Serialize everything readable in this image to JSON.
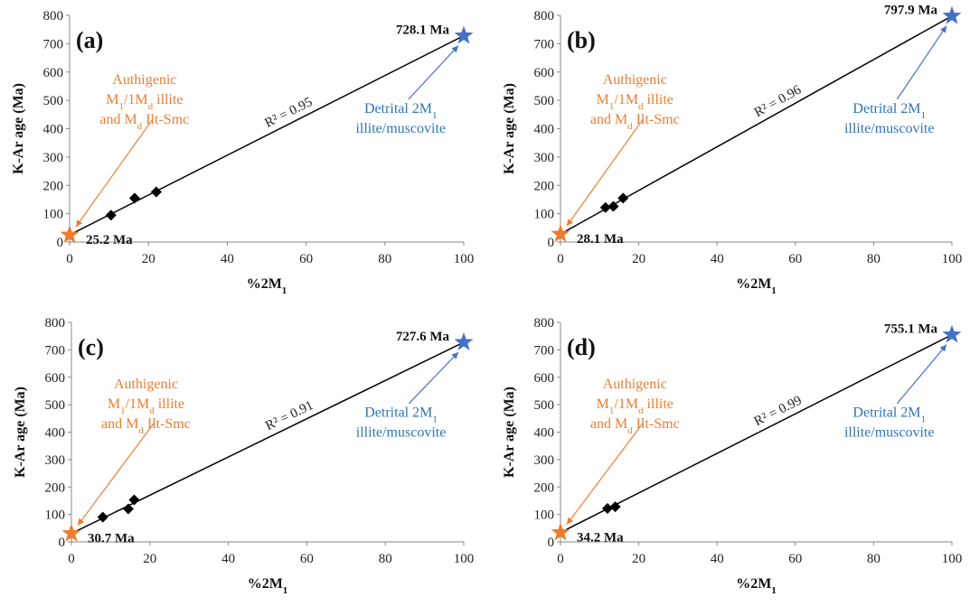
{
  "figure": {
    "authigenic_label": {
      "line1": "Authigenic",
      "line2_prefix": "M",
      "line2_sub1": "1",
      "line2_mid": "/1M",
      "line2_sub2": "d",
      "line2_suffix": " illite",
      "line3_prefix": "and M",
      "line3_sub": "d",
      "line3_suffix": " Ilt-Smc"
    },
    "detrital_label": {
      "line1_prefix": "Detrital 2M",
      "line1_sub": "1",
      "line2": "illite/muscovite"
    },
    "colors": {
      "authigenic": "#ED7D31",
      "detrital": "#4472C4",
      "detrital_text": "#2E75B6",
      "data_marker": "#000000",
      "regression_line": "#000000"
    },
    "marker_icons": {
      "authigenic_end_member": "star-icon",
      "detrital_end_member": "star-icon",
      "sample": "diamond-icon"
    }
  },
  "chart_data": [
    {
      "type": "scatter",
      "panel_label": "(a)",
      "xlabel_prefix": "%2M",
      "xlabel_sub": "1",
      "ylabel": "K-Ar age (Ma)",
      "xlim": [
        0,
        100
      ],
      "ylim": [
        0,
        800
      ],
      "xticks": [
        "0",
        "20",
        "40",
        "60",
        "80",
        "100"
      ],
      "yticks": [
        "0",
        "100",
        "200",
        "300",
        "400",
        "500",
        "600",
        "700",
        "800"
      ],
      "grid": false,
      "samples": {
        "x": [
          10.5,
          16.5,
          22.0
        ],
        "y": [
          95,
          155,
          177
        ]
      },
      "authigenic_end_member": {
        "x": 0,
        "y": 25.2,
        "label": "25.2 Ma"
      },
      "detrital_end_member": {
        "x": 100,
        "y": 728.1,
        "label": "728.1 Ma"
      },
      "r2_label": "R² = 0.95"
    },
    {
      "type": "scatter",
      "panel_label": "(b)",
      "xlabel_prefix": "%2M",
      "xlabel_sub": "1",
      "ylabel": "K-Ar age (Ma)",
      "xlim": [
        0,
        100
      ],
      "ylim": [
        0,
        800
      ],
      "xticks": [
        "0",
        "20",
        "40",
        "60",
        "80",
        "100"
      ],
      "yticks": [
        "0",
        "100",
        "200",
        "300",
        "400",
        "500",
        "600",
        "700",
        "800"
      ],
      "grid": false,
      "samples": {
        "x": [
          11.5,
          13.5,
          16.0
        ],
        "y": [
          122,
          126,
          155
        ]
      },
      "authigenic_end_member": {
        "x": 0,
        "y": 28.1,
        "label": "28.1 Ma"
      },
      "detrital_end_member": {
        "x": 100,
        "y": 797.9,
        "label": "797.9 Ma"
      },
      "r2_label": "R² = 0.96"
    },
    {
      "type": "scatter",
      "panel_label": "(c)",
      "xlabel_prefix": "%2M",
      "xlabel_sub": "1",
      "ylabel": "K-Ar age (Ma)",
      "xlim": [
        0,
        100
      ],
      "ylim": [
        0,
        800
      ],
      "xticks": [
        "0",
        "20",
        "40",
        "60",
        "80",
        "100"
      ],
      "yticks": [
        "0",
        "100",
        "200",
        "300",
        "400",
        "500",
        "600",
        "700",
        "800"
      ],
      "grid": false,
      "samples": {
        "x": [
          8.0,
          14.5,
          16.0
        ],
        "y": [
          90,
          120,
          153
        ]
      },
      "authigenic_end_member": {
        "x": 0,
        "y": 30.7,
        "label": "30.7 Ma"
      },
      "detrital_end_member": {
        "x": 100,
        "y": 727.6,
        "label": "727.6 Ma"
      },
      "r2_label": "R² = 0.91"
    },
    {
      "type": "scatter",
      "panel_label": "(d)",
      "xlabel_prefix": "%2M",
      "xlabel_sub": "1",
      "ylabel": "K-Ar age (Ma)",
      "xlim": [
        0,
        100
      ],
      "ylim": [
        0,
        800
      ],
      "xticks": [
        "0",
        "20",
        "40",
        "60",
        "80",
        "100"
      ],
      "yticks": [
        "0",
        "100",
        "200",
        "300",
        "400",
        "500",
        "600",
        "700",
        "800"
      ],
      "grid": false,
      "samples": {
        "x": [
          12.0,
          14.0
        ],
        "y": [
          122,
          128
        ]
      },
      "authigenic_end_member": {
        "x": 0,
        "y": 34.2,
        "label": "34.2 Ma"
      },
      "detrital_end_member": {
        "x": 100,
        "y": 755.1,
        "label": "755.1 Ma"
      },
      "r2_label": "R² = 0.99"
    }
  ]
}
